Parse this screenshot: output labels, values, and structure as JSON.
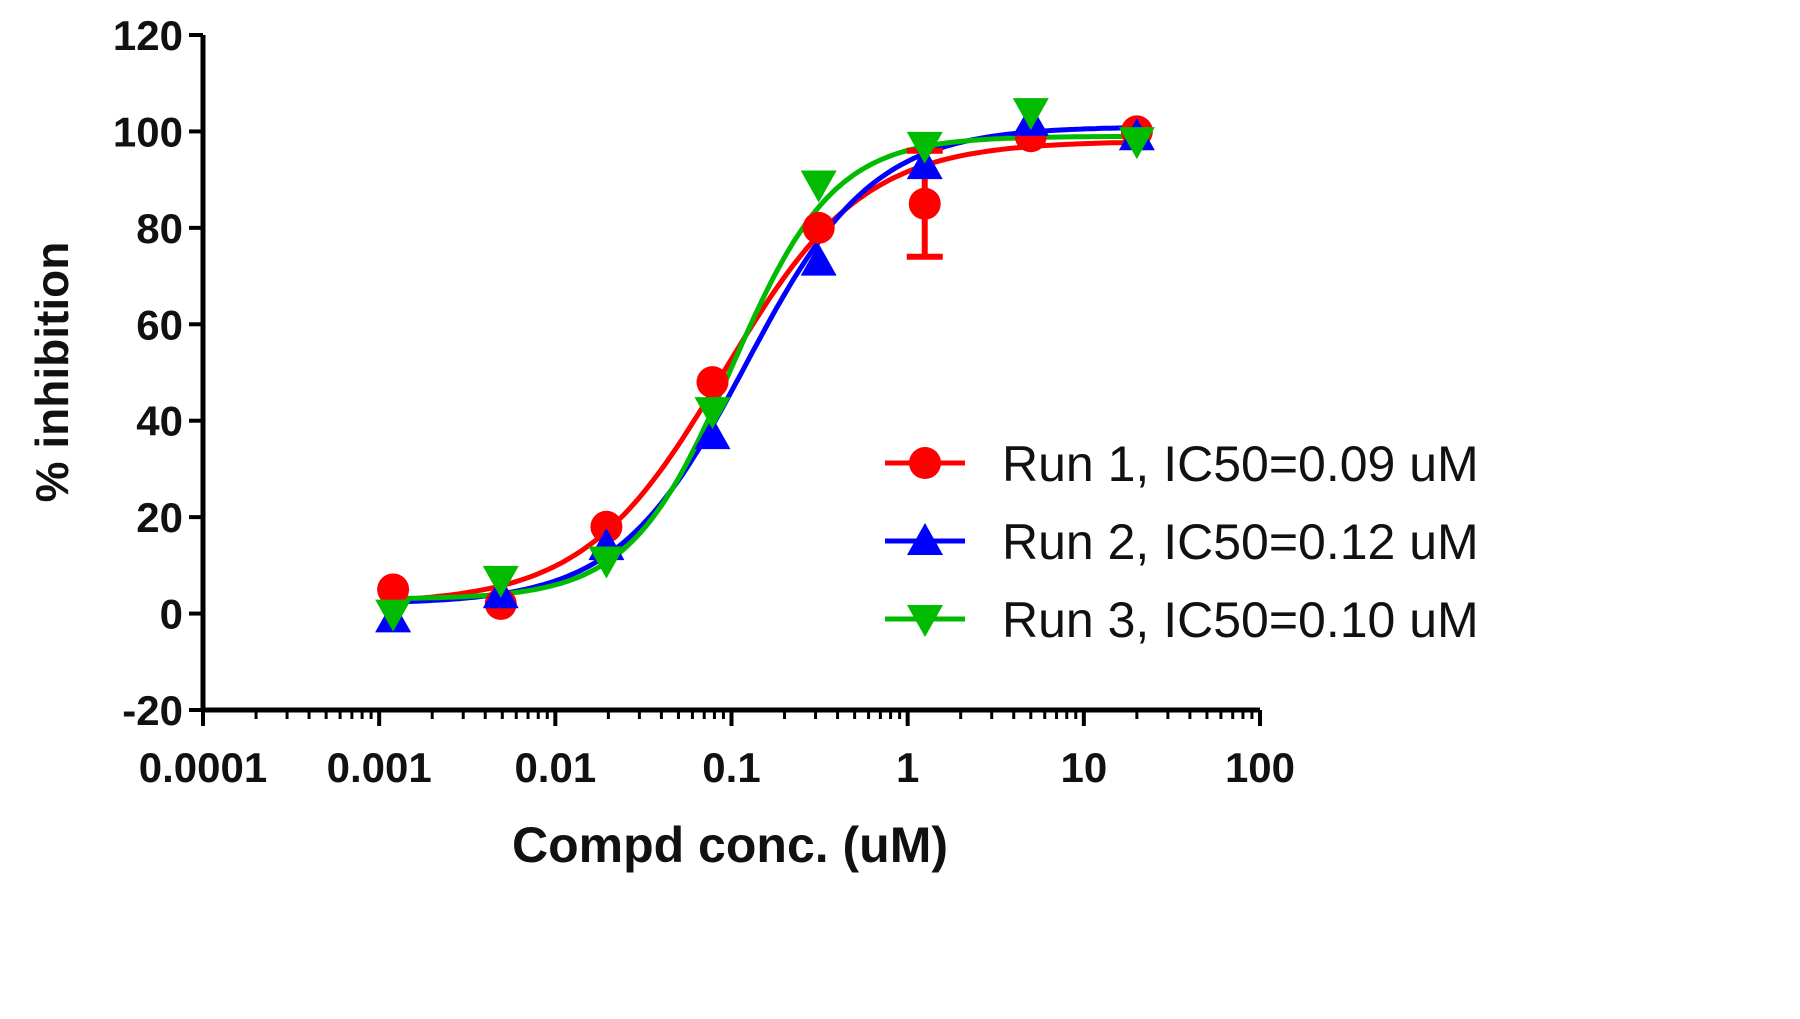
{
  "chart_data": {
    "type": "scatter",
    "title": "",
    "xlabel": "Compd conc. (uM)",
    "ylabel": "% inhibition",
    "xscale": "log",
    "xlim": [
      0.0001,
      100
    ],
    "ylim": [
      -20,
      120
    ],
    "xticks": [
      "0.0001",
      "0.001",
      "0.01",
      "0.1",
      "1",
      "10",
      "100"
    ],
    "xtick_values": [
      0.0001,
      0.001,
      0.01,
      0.1,
      1,
      10,
      100
    ],
    "yticks": [
      -20,
      0,
      20,
      40,
      60,
      80,
      100,
      120
    ],
    "grid": false,
    "legend_position": "right",
    "x": [
      0.0012,
      0.0049,
      0.0195,
      0.078,
      0.3125,
      1.25,
      5,
      20
    ],
    "series": [
      {
        "name": "Run 1, IC50=0.09 uM",
        "color": "#ff0000",
        "marker": "circle",
        "values": [
          5,
          2,
          18,
          48,
          80,
          85,
          99,
          100
        ],
        "yerr": [
          2,
          2,
          1,
          1,
          1,
          11,
          1,
          2
        ],
        "fit": {
          "bottom": 2,
          "top": 98,
          "ic50": 0.09,
          "hill": 1.1
        }
      },
      {
        "name": "Run 2, IC50=0.12 uM",
        "color": "#0000ff",
        "marker": "triangle-up",
        "values": [
          -1,
          4,
          14,
          37,
          73,
          93,
          102,
          99
        ],
        "yerr": [
          1,
          1,
          1,
          1,
          1,
          1,
          1,
          3
        ],
        "fit": {
          "bottom": 2,
          "top": 101,
          "ic50": 0.12,
          "hill": 1.2
        }
      },
      {
        "name": "Run 3, IC50=0.10 uM",
        "color": "#00bb00",
        "marker": "triangle-down",
        "values": [
          0,
          7,
          11,
          42,
          89,
          97,
          104,
          98
        ],
        "yerr": [
          1,
          2,
          1,
          1,
          1,
          1,
          1,
          2
        ],
        "fit": {
          "bottom": 3,
          "top": 99,
          "ic50": 0.1,
          "hill": 1.5
        }
      }
    ]
  }
}
